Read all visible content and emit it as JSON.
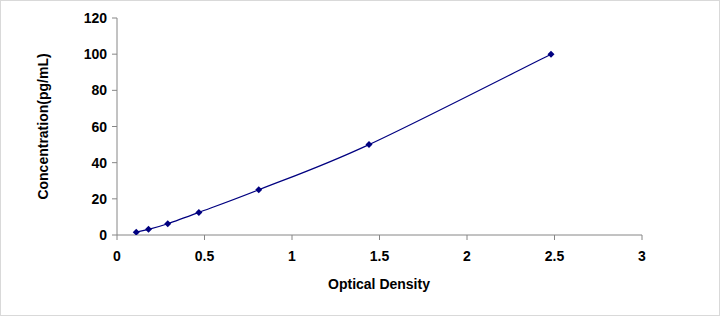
{
  "chart_data": {
    "type": "line",
    "x_label": "Optical Density",
    "y_label": "Concentration(pg/mL)",
    "x": [
      0.11,
      0.18,
      0.29,
      0.468,
      0.81,
      1.44,
      2.48
    ],
    "values": [
      1.56,
      3.12,
      6.25,
      12.5,
      25,
      50,
      100
    ],
    "color": "#000080",
    "marker": "diamond",
    "line_style": "solid",
    "xlim": [
      0,
      3
    ],
    "xticks": [
      0,
      0.5,
      1,
      1.5,
      2,
      2.5,
      3
    ],
    "ylim": [
      0,
      120
    ],
    "yticks": [
      0,
      20,
      40,
      60,
      80,
      100,
      120
    ],
    "grid": false
  }
}
